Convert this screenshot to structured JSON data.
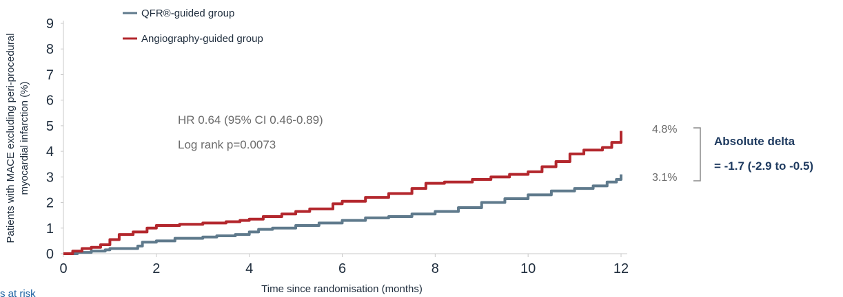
{
  "chart_data": {
    "type": "line",
    "xlabel": "Time since randomisation (months)",
    "ylabel_line1": "Patients with MACE excluding peri-procedural",
    "ylabel_line2": "myocardial infarction (%)",
    "xlim": [
      0,
      12
    ],
    "ylim": [
      0,
      9
    ],
    "x_ticks": [
      "0",
      "2",
      "4",
      "6",
      "8",
      "10",
      "12"
    ],
    "y_ticks": [
      "0",
      "1",
      "2",
      "3",
      "4",
      "5",
      "6",
      "7",
      "8",
      "9"
    ],
    "series": [
      {
        "name": "QFR®-guided group",
        "color": "#5f7a8c",
        "x": [
          0,
          0.3,
          0.6,
          0.9,
          1.0,
          1.6,
          1.7,
          2.0,
          2.4,
          3.0,
          3.3,
          3.7,
          4.0,
          4.2,
          4.5,
          5.0,
          5.5,
          6.0,
          6.5,
          7.0,
          7.5,
          8.0,
          8.5,
          9.0,
          9.5,
          10.0,
          10.5,
          11.0,
          11.4,
          11.7,
          11.9,
          12.0
        ],
        "values": [
          0,
          0.05,
          0.1,
          0.15,
          0.2,
          0.3,
          0.45,
          0.5,
          0.6,
          0.65,
          0.7,
          0.75,
          0.85,
          0.95,
          1.0,
          1.1,
          1.2,
          1.3,
          1.4,
          1.45,
          1.55,
          1.65,
          1.8,
          2.0,
          2.15,
          2.3,
          2.45,
          2.55,
          2.65,
          2.8,
          2.9,
          3.1
        ]
      },
      {
        "name": "Angiography-guided group",
        "color": "#b3272d",
        "x": [
          0,
          0.2,
          0.4,
          0.6,
          0.8,
          1.0,
          1.2,
          1.5,
          1.8,
          2.0,
          2.5,
          3.0,
          3.5,
          3.8,
          4.0,
          4.3,
          4.7,
          5.0,
          5.3,
          5.8,
          6.0,
          6.5,
          7.0,
          7.5,
          7.8,
          8.2,
          8.8,
          9.2,
          9.6,
          10.0,
          10.3,
          10.6,
          10.9,
          11.2,
          11.6,
          11.8,
          12.0
        ],
        "values": [
          0,
          0.1,
          0.2,
          0.25,
          0.35,
          0.55,
          0.75,
          0.85,
          1.0,
          1.1,
          1.15,
          1.2,
          1.25,
          1.3,
          1.35,
          1.45,
          1.55,
          1.65,
          1.75,
          1.95,
          2.05,
          2.2,
          2.35,
          2.55,
          2.75,
          2.8,
          2.9,
          3.0,
          3.1,
          3.2,
          3.4,
          3.6,
          3.9,
          4.05,
          4.15,
          4.35,
          4.8
        ]
      }
    ],
    "annotations": [
      "HR 0.64 (95% CI 0.46-0.89)",
      "Log rank p=0.0073"
    ],
    "end_labels": [
      "4.8%",
      "3.1%"
    ],
    "delta_lines": [
      "Absolute delta",
      "= -1.7 (-2.9 to -0.5)"
    ],
    "footer_text": "s at risk"
  }
}
